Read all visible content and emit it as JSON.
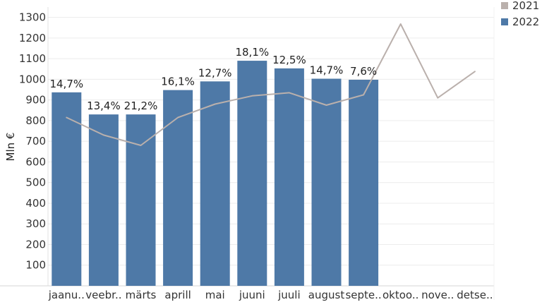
{
  "chart_data": {
    "type": "bar",
    "ylabel": "Mln €",
    "ylim": [
      0,
      1350
    ],
    "yticks": [
      100,
      200,
      300,
      400,
      500,
      600,
      700,
      800,
      900,
      1000,
      1100,
      1200,
      1300
    ],
    "grid": "y",
    "legend_position": "top-right",
    "categories": [
      "jaanu..",
      "veebr..",
      "märts",
      "aprill",
      "mai",
      "juuni",
      "juuli",
      "august",
      "septe..",
      "oktoo..",
      "nove..",
      "detse.."
    ],
    "series": [
      {
        "name": "2022",
        "type": "bar",
        "color": "#4e79a7",
        "values": [
          937,
          830,
          830,
          948,
          990,
          1090,
          1053,
          1003,
          998,
          null,
          null,
          null
        ],
        "labels": [
          "14,7%",
          "13,4%",
          "21,2%",
          "16,1%",
          "12,7%",
          "18,1%",
          "12,5%",
          "14,7%",
          "7,6%",
          "",
          "",
          ""
        ]
      },
      {
        "name": "2021",
        "type": "line",
        "color": "#bab0ac",
        "values": [
          815,
          730,
          680,
          815,
          880,
          920,
          935,
          875,
          925,
          1268,
          910,
          1038
        ]
      }
    ]
  }
}
